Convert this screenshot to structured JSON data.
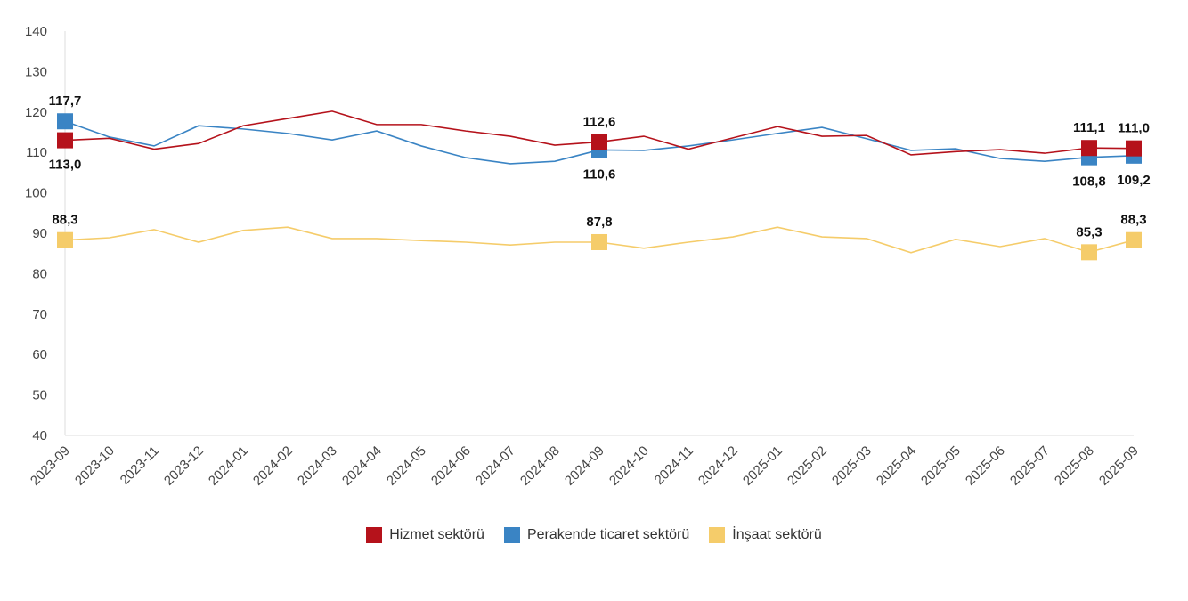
{
  "chart_data": {
    "type": "line",
    "title": "",
    "xlabel": "",
    "ylabel": "",
    "ylim": [
      40,
      140
    ],
    "yticks": [
      40,
      50,
      60,
      70,
      80,
      90,
      100,
      110,
      120,
      130,
      140
    ],
    "grid": false,
    "legend_position": "bottom",
    "categories": [
      "2023-09",
      "2023-10",
      "2023-11",
      "2023-12",
      "2024-01",
      "2024-02",
      "2024-03",
      "2024-04",
      "2024-05",
      "2024-06",
      "2024-07",
      "2024-08",
      "2024-09",
      "2024-10",
      "2024-11",
      "2024-12",
      "2025-01",
      "2025-02",
      "2025-03",
      "2025-04",
      "2025-05",
      "2025-06",
      "2025-07",
      "2025-08",
      "2025-09"
    ],
    "series": [
      {
        "name": "Hizmet sektörü",
        "color": "#b5121b",
        "values": [
          113.0,
          113.5,
          110.8,
          112.2,
          116.6,
          118.4,
          120.2,
          116.9,
          116.9,
          115.3,
          114.0,
          111.8,
          112.6,
          114.0,
          110.8,
          113.6,
          116.4,
          114.0,
          114.2,
          109.4,
          110.2,
          110.7,
          109.8,
          111.1,
          111.0
        ]
      },
      {
        "name": "Perakende ticaret sektörü",
        "color": "#3a84c4",
        "values": [
          117.7,
          113.8,
          111.6,
          116.6,
          115.8,
          114.7,
          113.1,
          115.3,
          111.6,
          108.7,
          107.2,
          107.8,
          110.6,
          110.5,
          111.6,
          113.1,
          114.7,
          116.2,
          113.4,
          110.5,
          110.9,
          108.5,
          107.8,
          108.8,
          109.2
        ]
      },
      {
        "name": "İnşaat sektörü",
        "color": "#f5cc6a",
        "values": [
          88.3,
          88.9,
          90.9,
          87.8,
          90.7,
          91.5,
          88.7,
          88.7,
          88.2,
          87.8,
          87.1,
          87.8,
          87.8,
          86.3,
          87.8,
          89.1,
          91.5,
          89.1,
          88.7,
          85.2,
          88.5,
          86.7,
          88.7,
          85.3,
          88.3
        ]
      }
    ],
    "annotations": [
      {
        "series": 0,
        "x": "2023-09",
        "text": "113,0"
      },
      {
        "series": 1,
        "x": "2023-09",
        "text": "117,7"
      },
      {
        "series": 2,
        "x": "2023-09",
        "text": "88,3"
      },
      {
        "series": 0,
        "x": "2024-09",
        "text": "112,6"
      },
      {
        "series": 1,
        "x": "2024-09",
        "text": "110,6"
      },
      {
        "series": 2,
        "x": "2024-09",
        "text": "87,8"
      },
      {
        "series": 0,
        "x": "2025-08",
        "text": "111,1"
      },
      {
        "series": 1,
        "x": "2025-08",
        "text": "108,8"
      },
      {
        "series": 2,
        "x": "2025-08",
        "text": "85,3"
      },
      {
        "series": 0,
        "x": "2025-09",
        "text": "111,0"
      },
      {
        "series": 1,
        "x": "2025-09",
        "text": "109,2"
      },
      {
        "series": 2,
        "x": "2025-09",
        "text": "88,3"
      }
    ]
  }
}
